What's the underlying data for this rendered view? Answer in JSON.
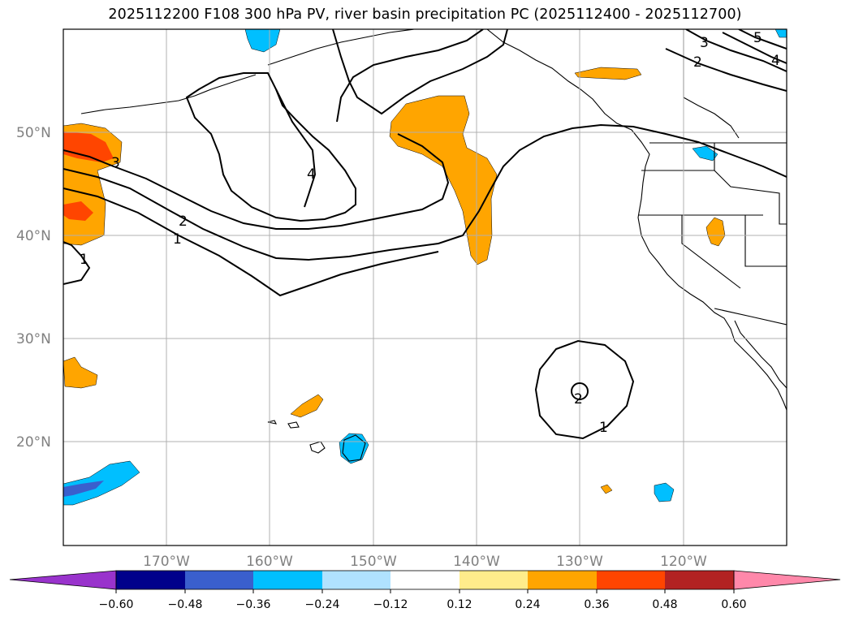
{
  "title": "2025112200 F108 300 hPa PV, river basin precipitation PC (2025112400 - 2025112700)",
  "map": {
    "lat_labels": [
      "50°N",
      "40°N",
      "30°N",
      "20°N"
    ],
    "lon_labels": [
      "170°W",
      "160°W",
      "150°W",
      "140°W",
      "130°W",
      "120°W"
    ],
    "contour_labels": [
      "3",
      "4",
      "2",
      "1",
      "1",
      "3",
      "5",
      "2",
      "4",
      "2",
      "1"
    ]
  },
  "colorbar": {
    "ticks": [
      "−0.60",
      "−0.48",
      "−0.36",
      "−0.24",
      "−0.12",
      "0.12",
      "0.24",
      "0.36",
      "0.48",
      "0.60"
    ],
    "colors": [
      "#9933cc",
      "#00008b",
      "#3a5fcd",
      "#00bfff",
      "#b0e2ff",
      "#ffffff",
      "#ffec8b",
      "#ffa500",
      "#ff4500",
      "#b22222",
      "#ff88aa"
    ]
  }
}
